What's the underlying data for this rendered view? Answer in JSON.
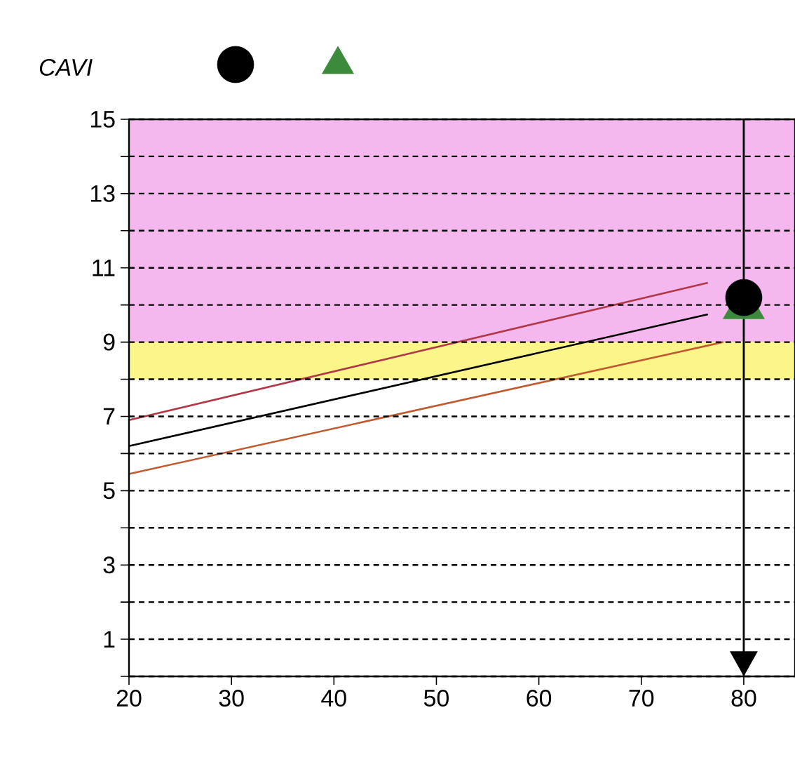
{
  "chart_data": {
    "type": "line",
    "ylabel": "CAVI",
    "xlim": [
      20,
      85
    ],
    "xticks": [
      20,
      30,
      40,
      50,
      60,
      70,
      80
    ],
    "ylim": [
      0,
      15
    ],
    "yticks": [
      {
        "value": 0,
        "label": null
      },
      1,
      {
        "value": 2,
        "label": null
      },
      3,
      {
        "value": 4,
        "label": null
      },
      5,
      {
        "value": 6,
        "label": null
      },
      7,
      {
        "value": 8,
        "label": null
      },
      9,
      {
        "value": 10,
        "label": null
      },
      11,
      {
        "value": 12,
        "label": null
      },
      13,
      {
        "value": 14,
        "label": null
      },
      15
    ],
    "grid": "y",
    "marker": "none",
    "line_style": "solid",
    "bands": [
      {
        "axis": "y",
        "from": 9,
        "to": 15,
        "color": "#f4b8ee"
      },
      {
        "axis": "y",
        "from": 8,
        "to": 9,
        "color": "#fbf58a"
      }
    ],
    "ref_lines": [
      {
        "axis": "x",
        "value": 80,
        "color": "#000000"
      }
    ],
    "series": [
      {
        "color": "#b03848",
        "x": [
          20,
          76.5
        ],
        "values": [
          6.9,
          10.6
        ]
      },
      {
        "color": "#000000",
        "x": [
          20,
          76.5
        ],
        "values": [
          6.2,
          9.75
        ]
      },
      {
        "color": "#c05a30",
        "x": [
          20,
          78
        ],
        "values": [
          5.45,
          9.0
        ]
      },
      {
        "type": "scatter",
        "marker": "triangle",
        "color": "#3c8a3c",
        "x": [
          80
        ],
        "values": [
          9.95
        ]
      },
      {
        "type": "scatter",
        "marker": "circle",
        "color": "#000000",
        "x": [
          80
        ],
        "values": [
          10.2
        ]
      }
    ]
  }
}
